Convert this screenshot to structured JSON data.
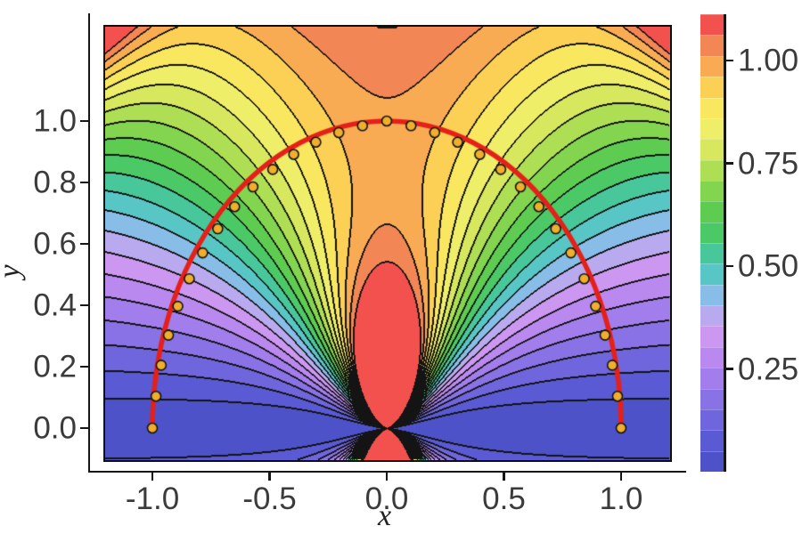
{
  "chart_data": {
    "type": "contour",
    "title": "",
    "xlabel": "x",
    "ylabel": "y",
    "x_range": [
      -1.2,
      1.2
    ],
    "y_range": [
      -0.1,
      1.3
    ],
    "grid": false,
    "x_ticks": {
      "values": [
        -1.0,
        -0.5,
        0.0,
        0.5,
        1.0
      ],
      "labels": [
        "-1.0",
        "-0.5",
        "0.0",
        "0.5",
        "1.0"
      ]
    },
    "y_ticks": {
      "values": [
        0.0,
        0.2,
        0.4,
        0.6,
        0.8,
        1.0
      ],
      "labels": [
        "0.0",
        "0.2",
        "0.4",
        "0.6",
        "0.8",
        "1.0"
      ]
    },
    "field": {
      "description": "scalar field drawn as 22 filled contour bands with black level lines; approx f(x,y)=|y|(1+|y|^1.2/(x^2+y^2)^1.475)/2+0.42(|xy|/1.56)^6; singular fan of contours at the origin, red high lobe along +y axis, minima near (±1,0), high patches in upper corners",
      "vmin": 0,
      "vmax": 1.1126,
      "n_bands": 22
    },
    "colormap": [
      "#4e52c8",
      "#5a5ad4",
      "#6f66dd",
      "#8872e5",
      "#a17eec",
      "#ba89f0",
      "#cc97f1",
      "#b9aaef",
      "#87bde6",
      "#59c6c6",
      "#48c79b",
      "#4cc967",
      "#5ecc50",
      "#83d44e",
      "#aede53",
      "#d7e75e",
      "#efee69",
      "#f9e75f",
      "#fbd054",
      "#f9ab53",
      "#f28655",
      "#f2514d"
    ],
    "contour_line_color": "#141414",
    "axis_color": "#161616",
    "tick_label_color": "#3b3b3b",
    "colorbar": {
      "side": "right",
      "ticks": {
        "values": [
          0.25,
          0.5,
          0.75,
          1.0
        ],
        "labels": [
          "0.25",
          "0.50",
          "0.75",
          "1.00"
        ]
      }
    },
    "overlay": {
      "curve": {
        "shape": "upper unit semicircle, center (0,0), radius 1",
        "color": "#e52019",
        "width": 5.5
      },
      "points": {
        "marker": "circle",
        "fill": "#efae2b",
        "stroke": "#141414",
        "radius": 5.5,
        "coords": [
          [
            -1.0,
            0.0
          ],
          [
            -0.9846,
            0.1035
          ],
          [
            -0.9625,
            0.2046
          ],
          [
            -0.9313,
            0.3026
          ],
          [
            -0.8913,
            0.3968
          ],
          [
            -0.8425,
            0.4864
          ],
          [
            -0.7856,
            0.5707
          ],
          [
            -0.721,
            0.6491
          ],
          [
            -0.6491,
            0.721
          ],
          [
            -0.5707,
            0.7856
          ],
          [
            -0.4864,
            0.8425
          ],
          [
            -0.3968,
            0.8913
          ],
          [
            -0.3026,
            0.9313
          ],
          [
            -0.2046,
            0.9625
          ],
          [
            -0.1035,
            0.9846
          ],
          [
            0.0,
            1.0
          ],
          [
            0.1035,
            0.9846
          ],
          [
            0.2046,
            0.9625
          ],
          [
            0.3026,
            0.9313
          ],
          [
            0.3968,
            0.8913
          ],
          [
            0.4864,
            0.8425
          ],
          [
            0.5707,
            0.7856
          ],
          [
            0.6491,
            0.721
          ],
          [
            0.721,
            0.6491
          ],
          [
            0.7856,
            0.5707
          ],
          [
            0.8425,
            0.4864
          ],
          [
            0.8913,
            0.3968
          ],
          [
            0.9313,
            0.3026
          ],
          [
            0.9625,
            0.2046
          ],
          [
            0.9846,
            0.1035
          ],
          [
            1.0,
            0.0
          ]
        ]
      }
    }
  }
}
